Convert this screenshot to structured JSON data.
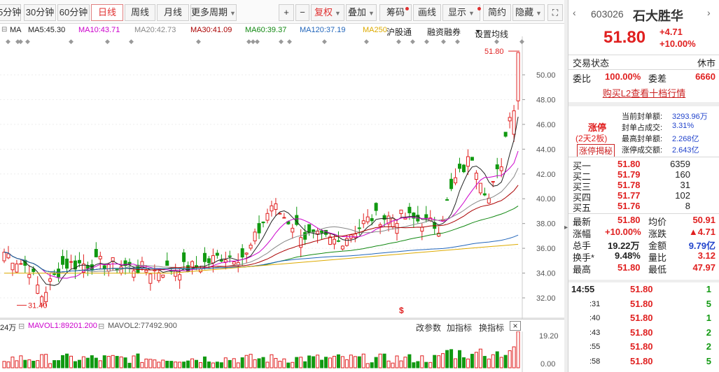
{
  "toolbar": {
    "m5": "5分钟",
    "m30": "30分钟",
    "m60": "60分钟",
    "day": "日线",
    "week": "周线",
    "month": "月线",
    "more": "更多周期",
    "plus": "+",
    "minus": "−",
    "fuquan": "复权",
    "diejia": "叠加",
    "chouma": "筹码",
    "huaxian": "画线",
    "xianshi": "显示",
    "yanjiu": "简约",
    "yincang": "隐藏"
  },
  "ma_legend": {
    "ma": "MA",
    "ma5": "MA5:45.30",
    "ma10": "MA10:43.71",
    "ma20": "MA20:42.73",
    "ma30": "MA30:41.09",
    "ma60": "MA60:39.37",
    "ma120": "MA120:37.19",
    "ma250": "MA250",
    "hutong": "沪股通",
    "rongzi": "融资融券",
    "shezhi": "设置均线"
  },
  "chart": {
    "y_ticks": [
      "50.00",
      "48.00",
      "46.00",
      "44.00",
      "42.00",
      "40.00",
      "38.00",
      "36.00",
      "34.00",
      "32.00"
    ],
    "high_label": "51.80",
    "low_label": "31.40",
    "dollar_mark": "$"
  },
  "volume": {
    "unit": "24万",
    "vol1": "MAVOL1:89201.200",
    "vol2": "MAVOL2:77492.900",
    "y_top": "19.20",
    "y_bottom": "0.00",
    "gai": "改参数",
    "jia": "加指标",
    "huan": "换指标",
    "close": "×"
  },
  "stock": {
    "code": "603026",
    "name": "石大胜华",
    "price": "51.80",
    "change": "+4.71",
    "pct": "+10.00%",
    "trade_status_label": "交易状态",
    "trade_status": "休市",
    "weibi_label": "委比",
    "weibi": "100.00%",
    "weicha_label": "委差",
    "weicha": "6660",
    "buy_l2": "购买L2查看十档行情",
    "zhangting": "涨停",
    "zhangting_sub": "(2天2板)",
    "jiemi": "涨停揭秘",
    "seal_now_label": "当前封单额:",
    "seal_now": "3293.96万",
    "seal_ratio_label": "封单占成交:",
    "seal_ratio": "3.31%",
    "seal_max_label": "最高封单额:",
    "seal_max": "2.268亿",
    "zt_turnover_label": "涨停成交额:",
    "zt_turnover": "2.643亿"
  },
  "buys": [
    {
      "label": "买一",
      "price": "51.80",
      "vol": "6359"
    },
    {
      "label": "买二",
      "price": "51.79",
      "vol": "160"
    },
    {
      "label": "买三",
      "price": "51.78",
      "vol": "31"
    },
    {
      "label": "买四",
      "price": "51.77",
      "vol": "102"
    },
    {
      "label": "买五",
      "price": "51.76",
      "vol": "8"
    }
  ],
  "quote": {
    "latest_label": "最新",
    "latest": "51.80",
    "avg_label": "均价",
    "avg": "50.91",
    "zf_label": "涨幅",
    "zf": "+10.00%",
    "zd_label": "涨跌",
    "zd": "▲4.71",
    "zs_label": "总手",
    "zs": "19.22万",
    "je_label": "金额",
    "je": "9.79亿",
    "hs_label": "换手*",
    "hs": "9.48%",
    "lb_label": "量比",
    "lb": "3.12",
    "zg_label": "最高",
    "zg": "51.80",
    "zd2_label": "最低",
    "zd2": "47.97"
  },
  "ticks": [
    {
      "time": "14:55",
      "price": "51.80",
      "vol": "1"
    },
    {
      "time": ":31",
      "price": "51.80",
      "vol": "5"
    },
    {
      "time": ":40",
      "price": "51.80",
      "vol": "1"
    },
    {
      "time": ":43",
      "price": "51.80",
      "vol": "2"
    },
    {
      "time": ":55",
      "price": "51.80",
      "vol": "2"
    },
    {
      "time": ":58",
      "price": "51.80",
      "vol": "5"
    }
  ],
  "colors": {
    "up": "#e02020",
    "down": "#119911",
    "ma5": "#222222",
    "ma10": "#cc00cc",
    "ma20": "#888888",
    "ma30": "#aa0000",
    "ma60": "#118811",
    "ma120": "#2266bb",
    "ma250": "#ddaa00"
  }
}
